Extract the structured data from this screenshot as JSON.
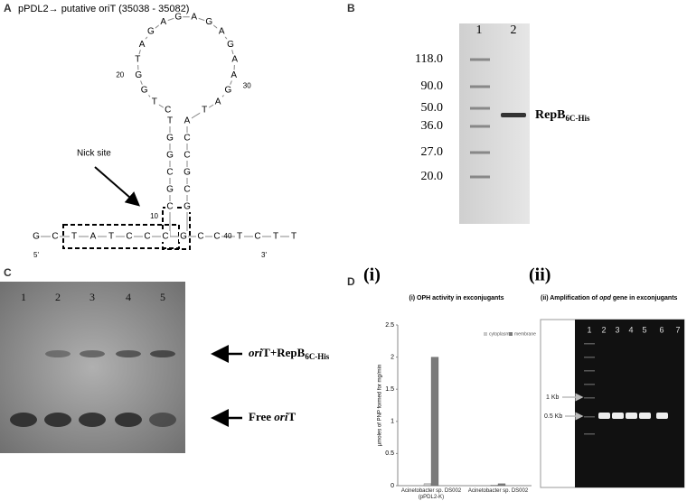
{
  "panels": {
    "A": {
      "label": "A",
      "title": "pPDL2→ putative oriT (35038 - 35082)",
      "loop": [
        "C",
        "T",
        "G",
        "G",
        "T",
        "A",
        "G",
        "A",
        "G",
        "A",
        "G",
        "A",
        "G",
        "A",
        "A",
        "G",
        "A",
        "T"
      ],
      "stem_left": [
        "T",
        "G",
        "G",
        "C",
        "G",
        "C"
      ],
      "stem_right": [
        "A",
        "C",
        "C",
        "G",
        "C",
        "G"
      ],
      "strand": [
        "G",
        "C",
        "T",
        "A",
        "T",
        "C",
        "C",
        "C",
        "G",
        "C",
        "C",
        "T",
        "C",
        "T",
        "T"
      ],
      "positions": [
        "20",
        "30",
        "10",
        "40"
      ],
      "ends": [
        "5'",
        "3'"
      ],
      "nick_label": "Nick site"
    },
    "B": {
      "label": "B",
      "lanes": [
        "1",
        "2"
      ],
      "ladder": [
        "118.0",
        "90.0",
        "50.0",
        "36.0",
        "27.0",
        "20.0"
      ],
      "band_label": {
        "main": "RepB",
        "sub": "6C-His"
      }
    },
    "C": {
      "label": "C",
      "lanes": [
        "1",
        "2",
        "3",
        "4",
        "5"
      ],
      "upper_label": {
        "italic": "ori",
        "rest": "T+RepB",
        "sub": "6C-His"
      },
      "lower_label": {
        "prefix": "Free ",
        "italic": "ori",
        "rest": "T"
      }
    },
    "D": {
      "label": "D",
      "sub_labels": [
        "(i)",
        "(ii)"
      ],
      "gel": {
        "title": [
          "(ii) Amplification of ",
          "opd",
          " gene in exconjugants"
        ],
        "lanes": [
          "1",
          "2",
          "3",
          "4",
          "5",
          "6",
          "7"
        ],
        "markers": [
          "1 Kb",
          "0.5 Kb"
        ]
      }
    }
  },
  "chart_data": {
    "type": "bar",
    "title": "(i) OPH activity in exconjugants",
    "y_label": "µmoles of PNP formed for mg/min",
    "categories": [
      "Acinetobacter sp. DS002 (pPDL2-K)",
      "Acinetobacter sp. DS002"
    ],
    "series": [
      {
        "name": "cytoplasm",
        "color": "#c8c8c8",
        "values": [
          0.03,
          0.01
        ]
      },
      {
        "name": "membrane",
        "color": "#7a7a7a",
        "values": [
          2.0,
          0.03
        ]
      }
    ],
    "ylim": [
      0,
      2.5
    ],
    "yticks": [
      0,
      0.5,
      1,
      1.5,
      2,
      2.5
    ]
  }
}
